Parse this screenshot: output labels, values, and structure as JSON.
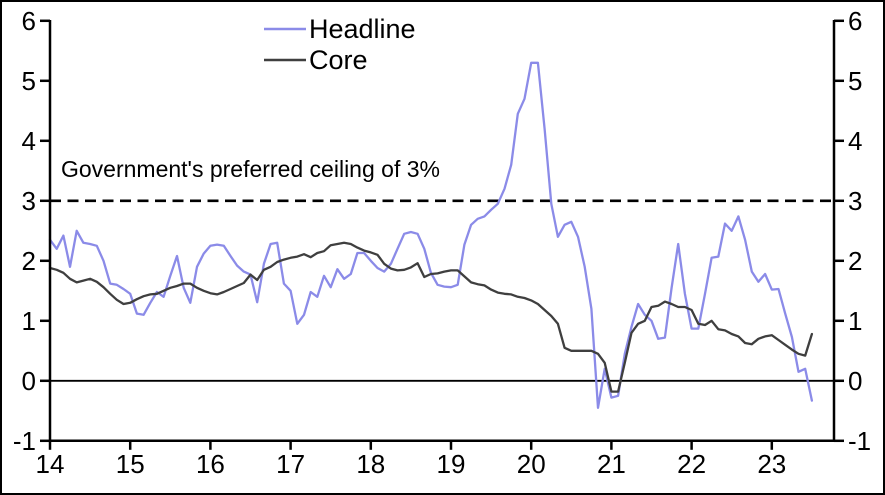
{
  "chart": {
    "annotation": "Government's preferred ceiling of 3%",
    "background": "#ffffff",
    "axis_color": "#000000",
    "y_ticks_left": [
      "6",
      "5",
      "4",
      "3",
      "2",
      "1",
      "0",
      "-1"
    ],
    "y_ticks_right": [
      "6",
      "5",
      "4",
      "3",
      "2",
      "1",
      "0",
      "-1"
    ],
    "x_ticks": [
      "14",
      "15",
      "16",
      "17",
      "18",
      "19",
      "20",
      "21",
      "22",
      "23"
    ]
  },
  "chart_data": {
    "type": "line",
    "title": "",
    "xlabel": "",
    "ylabel": "",
    "x_unit": "monthly",
    "x_start": "2014-01",
    "x_end": "2023-07",
    "ylim": [
      -1,
      6
    ],
    "xlim_years": [
      14,
      23.75
    ],
    "grid": false,
    "legend_position": "top-center",
    "zero_line": 0,
    "reference_line": {
      "value": 3,
      "style": "dashed",
      "label": "Government's preferred ceiling of 3%"
    },
    "series": [
      {
        "name": "Headline",
        "color": "#8b8be8",
        "values": [
          2.35,
          2.2,
          2.42,
          1.9,
          2.5,
          2.3,
          2.28,
          2.25,
          2.0,
          1.62,
          1.6,
          1.53,
          1.45,
          1.12,
          1.1,
          1.3,
          1.48,
          1.4,
          1.75,
          2.08,
          1.55,
          1.3,
          1.9,
          2.12,
          2.25,
          2.27,
          2.25,
          2.08,
          1.92,
          1.82,
          1.77,
          1.31,
          1.95,
          2.28,
          2.3,
          1.62,
          1.5,
          0.95,
          1.1,
          1.48,
          1.4,
          1.75,
          1.56,
          1.86,
          1.7,
          1.78,
          2.13,
          2.13,
          2.0,
          1.88,
          1.82,
          1.95,
          2.2,
          2.45,
          2.48,
          2.45,
          2.2,
          1.8,
          1.6,
          1.57,
          1.56,
          1.6,
          2.27,
          2.6,
          2.7,
          2.74,
          2.85,
          2.95,
          3.2,
          3.6,
          4.45,
          4.7,
          5.3,
          5.3,
          4.2,
          2.95,
          2.4,
          2.6,
          2.65,
          2.4,
          1.9,
          1.2,
          -0.45,
          0.2,
          -0.28,
          -0.25,
          0.45,
          0.9,
          1.28,
          1.1,
          1.0,
          0.7,
          0.72,
          1.55,
          2.28,
          1.45,
          0.87,
          0.87,
          1.45,
          2.05,
          2.07,
          2.62,
          2.5,
          2.74,
          2.35,
          1.82,
          1.65,
          1.78,
          1.52,
          1.53,
          1.12,
          0.73,
          0.15,
          0.2,
          -0.33
        ]
      },
      {
        "name": "Core",
        "color": "#3f3f3f",
        "values": [
          1.88,
          1.85,
          1.8,
          1.7,
          1.64,
          1.67,
          1.7,
          1.65,
          1.56,
          1.45,
          1.35,
          1.28,
          1.3,
          1.36,
          1.41,
          1.44,
          1.45,
          1.5,
          1.55,
          1.58,
          1.62,
          1.62,
          1.55,
          1.5,
          1.46,
          1.44,
          1.48,
          1.53,
          1.58,
          1.63,
          1.77,
          1.68,
          1.85,
          1.9,
          1.98,
          2.02,
          2.05,
          2.07,
          2.11,
          2.06,
          2.13,
          2.16,
          2.26,
          2.28,
          2.3,
          2.28,
          2.22,
          2.17,
          2.14,
          2.1,
          1.95,
          1.87,
          1.84,
          1.85,
          1.89,
          1.96,
          1.73,
          1.78,
          1.79,
          1.82,
          1.84,
          1.84,
          1.74,
          1.64,
          1.61,
          1.59,
          1.52,
          1.47,
          1.45,
          1.44,
          1.4,
          1.38,
          1.34,
          1.28,
          1.18,
          1.08,
          0.95,
          0.55,
          0.5,
          0.5,
          0.5,
          0.5,
          0.45,
          0.3,
          -0.18,
          -0.18,
          0.3,
          0.8,
          0.95,
          1.0,
          1.23,
          1.25,
          1.32,
          1.28,
          1.23,
          1.23,
          1.18,
          0.95,
          0.93,
          1.0,
          0.86,
          0.84,
          0.78,
          0.74,
          0.63,
          0.61,
          0.7,
          0.74,
          0.76,
          0.68,
          0.6,
          0.52,
          0.45,
          0.42,
          0.78
        ]
      }
    ]
  }
}
